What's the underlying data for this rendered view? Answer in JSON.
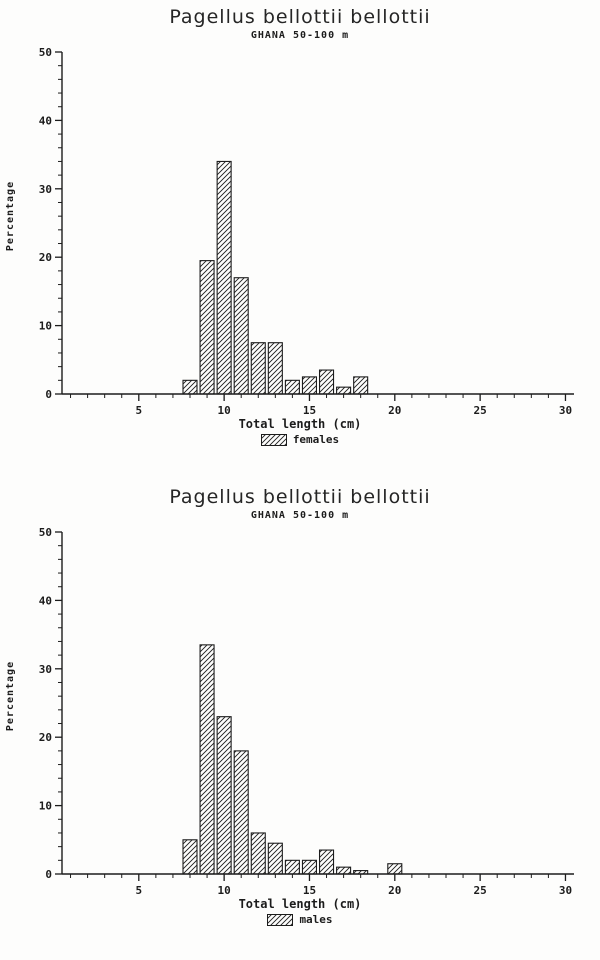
{
  "colors": {
    "ink": "#1c1c1c",
    "paper": "#fdfdfc"
  },
  "chart_data": [
    {
      "type": "bar",
      "title": "Pagellus bellottii bellottii",
      "subtitle": "GHANA 50-100 m",
      "xlabel": "Total length (cm)",
      "ylabel": "Percentage",
      "legend": "females",
      "xlim": [
        0.5,
        30.5
      ],
      "ylim": [
        0,
        50
      ],
      "x_major_ticks": [
        5,
        10,
        15,
        20,
        25,
        30
      ],
      "y_major_ticks": [
        0,
        10,
        20,
        30,
        40,
        50
      ],
      "x_minor_step": 1,
      "y_minor_step": 2,
      "x": [
        8,
        9,
        10,
        11,
        12,
        13,
        14,
        15,
        16,
        17,
        18
      ],
      "values": [
        2,
        19.5,
        34,
        17,
        7.5,
        7.5,
        2,
        2.5,
        3.5,
        1,
        2.5
      ]
    },
    {
      "type": "bar",
      "title": "Pagellus bellottii bellottii",
      "subtitle": "GHANA 50-100 m",
      "xlabel": "Total length (cm)",
      "ylabel": "Percentage",
      "legend": "males",
      "xlim": [
        0.5,
        30.5
      ],
      "ylim": [
        0,
        50
      ],
      "x_major_ticks": [
        5,
        10,
        15,
        20,
        25,
        30
      ],
      "y_major_ticks": [
        0,
        10,
        20,
        30,
        40,
        50
      ],
      "x_minor_step": 1,
      "y_minor_step": 2,
      "x": [
        8,
        9,
        10,
        11,
        12,
        13,
        14,
        15,
        16,
        17,
        18,
        20
      ],
      "values": [
        5,
        33.5,
        23,
        18,
        6,
        4.5,
        2,
        2,
        3.5,
        1,
        0.5,
        1.5
      ]
    }
  ]
}
